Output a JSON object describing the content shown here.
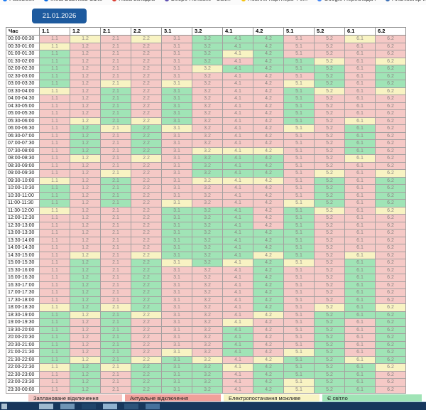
{
  "bookmarks_bar": {
    "items": [
      {
        "label": "Facebook",
        "icon": "facebook-icon",
        "icon_color": "#1877f2"
      },
      {
        "label": "Meta Business Suite",
        "icon": "meta-icon",
        "icon_color": "#0668e1"
      },
      {
        "label": "Нова вкладка",
        "icon": "red-circle-icon",
        "icon_color": "#d93b30"
      },
      {
        "label": "Вебре Попаске - Саміт",
        "icon": "purple-diamond-icon",
        "icon_color": "#5c4db1"
      },
      {
        "label": "Новини партнера 4 е...",
        "icon": "yellow-star-icon",
        "icon_color": "#f4c20d"
      },
      {
        "label": "Google Перекладач",
        "icon": "translate-icon",
        "icon_color": "#4285f4"
      },
      {
        "label": "Аналізатор конкуре...",
        "icon": "analyzer-icon",
        "icon_color": "#3b6fb5"
      },
      {
        "label": "Google Аналітика | Сп...",
        "icon": "analytics-icon",
        "icon_color": "#f9ab00"
      }
    ]
  },
  "toolbar": {
    "date_label": "21.01.2026"
  },
  "colors": {
    "P": "#f5c9c6",
    "A": "#f0a09a",
    "Y": "#f8f3c3",
    "G": "#a0e4b6"
  },
  "table": {
    "time_header": "Час",
    "columns": [
      "1.1",
      "1.2",
      "2.1",
      "2.2",
      "3.1",
      "3.2",
      "4.1",
      "4.2",
      "5.1",
      "5.2",
      "6.1",
      "6.2"
    ],
    "rows": [
      {
        "time": "00:00-00:30",
        "cells": "PYPYPGGGPPYP"
      },
      {
        "time": "00:30-01:00",
        "cells": "YPPPPGGGPPPP"
      },
      {
        "time": "01:00-01:30",
        "cells": "GPPPPGYGPPPP"
      },
      {
        "time": "01:30-02:00",
        "cells": "GPPPPGPGGYPY"
      },
      {
        "time": "02:00-02:30",
        "cells": "GPPPPYGGGGPG"
      },
      {
        "time": "02:30-03:00",
        "cells": "GPPPPPPPPGPG"
      },
      {
        "time": "03:00-03:30",
        "cells": "GPYPYPPPYGPG"
      },
      {
        "time": "03:30-04:00",
        "cells": "YPGPGPPPGYPY"
      },
      {
        "time": "04:00-04:30",
        "cells": "PPGPGPPPGPPP"
      },
      {
        "time": "04:30-05:00",
        "cells": "PPGPGPPPGPPP"
      },
      {
        "time": "05:00-05:30",
        "cells": "PPGPGPPPGPPP"
      },
      {
        "time": "05:30-06:00",
        "cells": "PYGYGPPPGPYP"
      },
      {
        "time": "06:00-06:30",
        "cells": "PGYGYPPPYPGP"
      },
      {
        "time": "06:30-07:00",
        "cells": "PGPGPPPPPPGP"
      },
      {
        "time": "07:00-07:30",
        "cells": "PGPGPPPPPPGP"
      },
      {
        "time": "07:30-08:00",
        "cells": "PGPGPYYYPPGP"
      },
      {
        "time": "08:00-08:30",
        "cells": "PYPYPGGGPPYP"
      },
      {
        "time": "08:30-09:00",
        "cells": "PPPPPGGGPPPP"
      },
      {
        "time": "09:00-09:30",
        "cells": "PPYPPGGGPYPY"
      },
      {
        "time": "09:30-10:00",
        "cells": "YPGPPYYYPGPG"
      },
      {
        "time": "10:00-10:30",
        "cells": "GPGPPPPPPGPG"
      },
      {
        "time": "10:30-11:00",
        "cells": "GPGPPPPPPGPG"
      },
      {
        "time": "11:00-11:30",
        "cells": "GPGPYPPPYGPG"
      },
      {
        "time": "11:30-12:00",
        "cells": "YPPPGGGPGYPY"
      },
      {
        "time": "12:00-12:30",
        "cells": "PPPPGGGPGPPP"
      },
      {
        "time": "12:30-13:00",
        "cells": "PPPPGGGPGPPP"
      },
      {
        "time": "13:00-13:30",
        "cells": "PPPPGGGGGPPP"
      },
      {
        "time": "13:30-14:00",
        "cells": "PPPPGGGGGPPP"
      },
      {
        "time": "14:00-14:30",
        "cells": "PPPPGGGGGPPP"
      },
      {
        "time": "14:30-15:00",
        "cells": "PYPYGGGYGPYP"
      },
      {
        "time": "15:00-15:30",
        "cells": "PGPGYGYGYPGP"
      },
      {
        "time": "15:30-16:00",
        "cells": "PGPGPPPGPPGP"
      },
      {
        "time": "16:00-16:30",
        "cells": "PGPGPPPGPPGP"
      },
      {
        "time": "16:30-17:00",
        "cells": "PGPGPPPGPPGP"
      },
      {
        "time": "17:00-17:30",
        "cells": "PGPGPPPGPPGP"
      },
      {
        "time": "17:30-18:00",
        "cells": "PGPGPPPGPPGP"
      },
      {
        "time": "18:00-18:30",
        "cells": "YGYGPPPGPYGY"
      },
      {
        "time": "18:30-19:00",
        "cells": "GYGYPPPYPGGG"
      },
      {
        "time": "19:00-19:30",
        "cells": "GPGPPPYPPGPG"
      },
      {
        "time": "19:30-20:00",
        "cells": "GPGPPPGPPGPG"
      },
      {
        "time": "20:00-20:30",
        "cells": "GPGPPPGPPGPG"
      },
      {
        "time": "20:30-21:00",
        "cells": "GPGPPPGPPGPG"
      },
      {
        "time": "21:00-21:30",
        "cells": "GPGPYPGPYGPG"
      },
      {
        "time": "21:30-22:00",
        "cells": "GYGYGYPYGGYG"
      },
      {
        "time": "22:00-22:30",
        "cells": "YGYGGGYGGGGY"
      },
      {
        "time": "22:30-23:00",
        "cells": "PGPGGGPGGGGP"
      },
      {
        "time": "23:00-23:30",
        "cells": "PGPGGGPGYGGP"
      },
      {
        "time": "23:30-00:00",
        "cells": "PGPGGGPGYGGP"
      }
    ]
  },
  "legend": {
    "items": [
      {
        "label": "Заплановане відключення",
        "color_key": "P"
      },
      {
        "label": "Актуальне відключення",
        "color_key": "A"
      },
      {
        "label": "Електропостачання можливе",
        "color_key": "Y"
      },
      {
        "label": "Є світло",
        "color_key": "G"
      }
    ]
  },
  "taskbar": {
    "tiles": [
      "#9fb9cf",
      "#6f94b5",
      "#20456b",
      "#8fb2cf",
      "#2d547a",
      "#46719c"
    ]
  }
}
